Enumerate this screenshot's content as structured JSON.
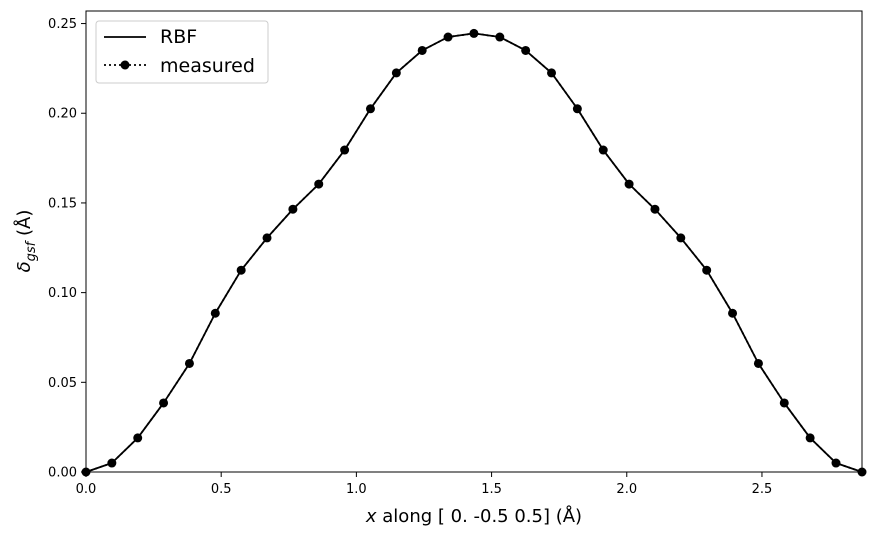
{
  "chart_data": {
    "type": "line",
    "xlabel": {
      "var": "x",
      "rest": " along [ 0.  -0.5  0.5] (Å)"
    },
    "ylabel": {
      "sym": "δ",
      "sub": "gsf",
      "rest": " (Å)"
    },
    "xlim": [
      0.0,
      2.87
    ],
    "ylim": [
      0.0,
      0.257
    ],
    "x_ticks": [
      0.0,
      0.5,
      1.0,
      1.5,
      2.0,
      2.5
    ],
    "x_tick_labels": [
      "0.0",
      "0.5",
      "1.0",
      "1.5",
      "2.0",
      "2.5"
    ],
    "y_ticks": [
      0.0,
      0.05,
      0.1,
      0.15,
      0.2,
      0.25
    ],
    "y_tick_labels": [
      "0.00",
      "0.05",
      "0.10",
      "0.15",
      "0.20",
      "0.25"
    ],
    "grid": false,
    "legend_position": "top-left",
    "series": [
      {
        "name": "RBF",
        "style": "solid",
        "color": "#000000",
        "x": [
          0.0,
          0.0956,
          0.1913,
          0.2869,
          0.3826,
          0.4782,
          0.5739,
          0.6695,
          0.7652,
          0.8608,
          0.9565,
          1.0521,
          1.1478,
          1.2434,
          1.3391,
          1.4347,
          1.5304,
          1.626,
          1.7217,
          1.8173,
          1.913,
          2.0086,
          2.1043,
          2.1999,
          2.2956,
          2.3912,
          2.4869,
          2.5825,
          2.6782,
          2.7738,
          2.87
        ],
        "y": [
          0.0,
          0.005,
          0.019,
          0.0385,
          0.0605,
          0.0885,
          0.1125,
          0.1305,
          0.1465,
          0.1605,
          0.1795,
          0.2025,
          0.2225,
          0.235,
          0.2425,
          0.2445,
          0.2425,
          0.235,
          0.2225,
          0.2025,
          0.1795,
          0.1605,
          0.1465,
          0.1305,
          0.1125,
          0.0885,
          0.0605,
          0.0385,
          0.019,
          0.005,
          0.0
        ]
      },
      {
        "name": "measured",
        "style": "dotted",
        "marker": "circle",
        "color": "#000000",
        "x": [
          0.0,
          0.0956,
          0.1913,
          0.2869,
          0.3826,
          0.4782,
          0.5739,
          0.6695,
          0.7652,
          0.8608,
          0.9565,
          1.0521,
          1.1478,
          1.2434,
          1.3391,
          1.4347,
          1.5304,
          1.626,
          1.7217,
          1.8173,
          1.913,
          2.0086,
          2.1043,
          2.1999,
          2.2956,
          2.3912,
          2.4869,
          2.5825,
          2.6782,
          2.7738,
          2.87
        ],
        "y": [
          0.0,
          0.005,
          0.019,
          0.0385,
          0.0605,
          0.0885,
          0.1125,
          0.1305,
          0.1465,
          0.1605,
          0.1795,
          0.2025,
          0.2225,
          0.235,
          0.2425,
          0.2445,
          0.2425,
          0.235,
          0.2225,
          0.2025,
          0.1795,
          0.1605,
          0.1465,
          0.1305,
          0.1125,
          0.0885,
          0.0605,
          0.0385,
          0.019,
          0.005,
          0.0
        ]
      }
    ]
  }
}
